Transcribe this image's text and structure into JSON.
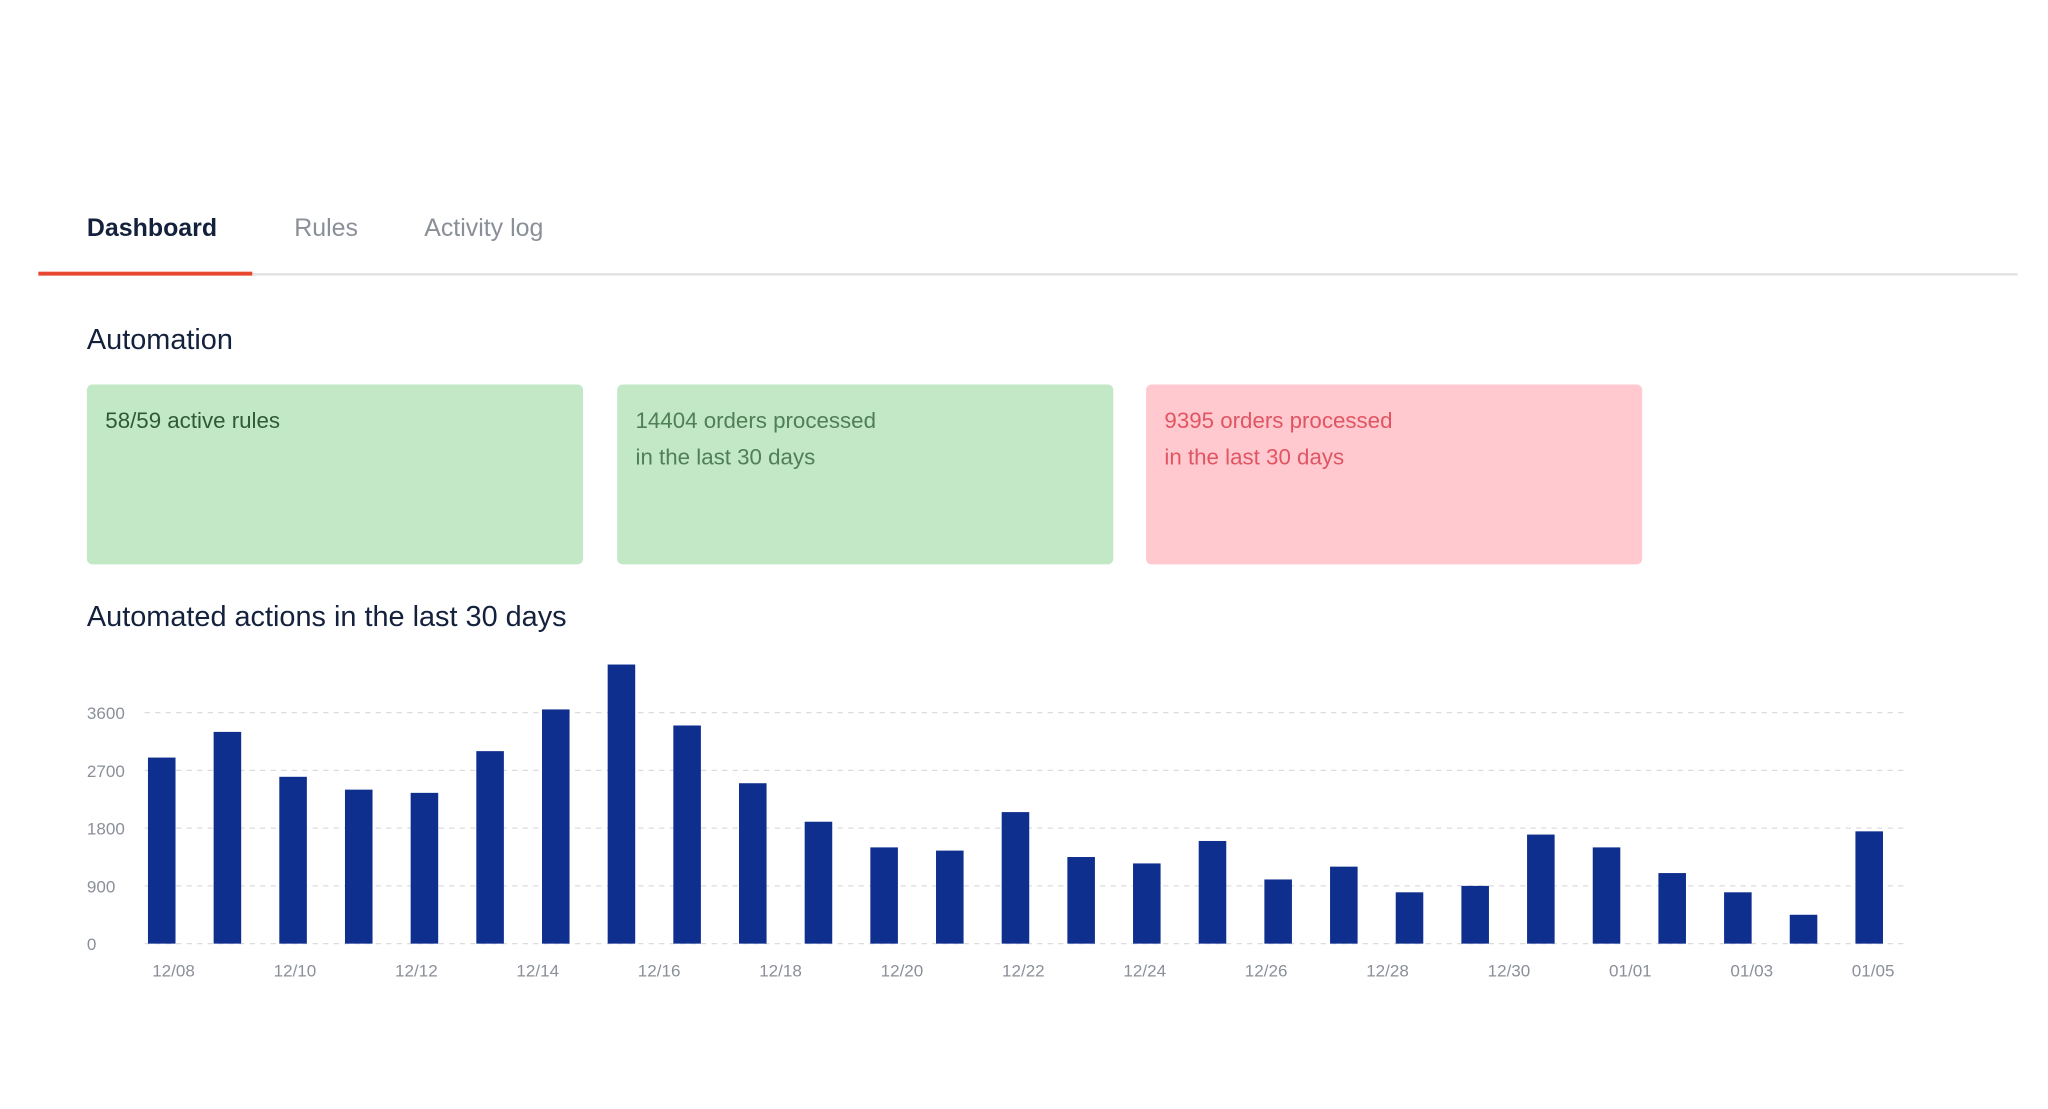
{
  "tabs": {
    "items": [
      "Dashboard",
      "Rules",
      "Activity log"
    ],
    "active": 0
  },
  "section_title": "Automation",
  "cards": [
    {
      "lines": [
        "58/59 active rules"
      ]
    },
    {
      "lines": [
        "14404 orders processed",
        "in the last 30 days"
      ]
    },
    {
      "lines": [
        "9395 orders processed",
        "in the last 30 days"
      ]
    }
  ],
  "chart_data": {
    "type": "bar",
    "title": "Automated actions in the last 30 days",
    "values": [
      2900,
      3300,
      2600,
      2400,
      2350,
      3000,
      3650,
      4350,
      3400,
      2500,
      1900,
      1500,
      1450,
      2050,
      1350,
      1250,
      1600,
      1000,
      1200,
      800,
      900,
      1700,
      1500,
      1100,
      800,
      450,
      1750
    ],
    "color": "#0f2f8f",
    "xticks": [
      "12/08",
      "12/10",
      "12/12",
      "12/14",
      "12/16",
      "12/18",
      "12/20",
      "12/22",
      "12/24",
      "12/26",
      "12/28",
      "12/30",
      "01/01",
      "01/03",
      "01/05"
    ],
    "ylim": [
      0,
      4500
    ],
    "yticks": [
      0,
      900,
      1800,
      2700,
      3600
    ],
    "grid": true
  }
}
